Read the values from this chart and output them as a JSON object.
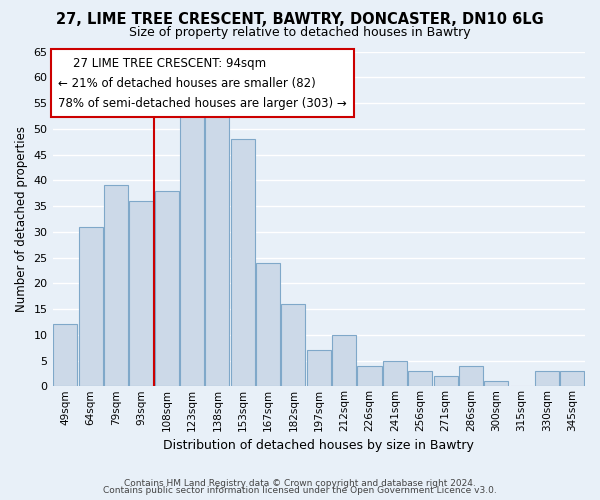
{
  "title": "27, LIME TREE CRESCENT, BAWTRY, DONCASTER, DN10 6LG",
  "subtitle": "Size of property relative to detached houses in Bawtry",
  "xlabel": "Distribution of detached houses by size in Bawtry",
  "ylabel": "Number of detached properties",
  "bar_color": "#ccd9e8",
  "bar_edge_color": "#7fa8c9",
  "bg_color": "#e8f0f8",
  "categories": [
    "49sqm",
    "64sqm",
    "79sqm",
    "93sqm",
    "108sqm",
    "123sqm",
    "138sqm",
    "153sqm",
    "167sqm",
    "182sqm",
    "197sqm",
    "212sqm",
    "226sqm",
    "241sqm",
    "256sqm",
    "271sqm",
    "286sqm",
    "300sqm",
    "315sqm",
    "330sqm",
    "345sqm"
  ],
  "values": [
    12,
    31,
    39,
    36,
    38,
    53,
    54,
    48,
    24,
    16,
    7,
    10,
    4,
    5,
    3,
    2,
    4,
    1,
    0,
    3,
    3
  ],
  "vline_x": 3.5,
  "vline_color": "#cc0000",
  "annotation_title": "27 LIME TREE CRESCENT: 94sqm",
  "annotation_line1": "← 21% of detached houses are smaller (82)",
  "annotation_line2": "78% of semi-detached houses are larger (303) →",
  "annotation_box_color": "white",
  "annotation_box_edge": "#cc0000",
  "footer1": "Contains HM Land Registry data © Crown copyright and database right 2024.",
  "footer2": "Contains public sector information licensed under the Open Government Licence v3.0.",
  "ylim": [
    0,
    65
  ],
  "yticks": [
    0,
    5,
    10,
    15,
    20,
    25,
    30,
    35,
    40,
    45,
    50,
    55,
    60,
    65
  ]
}
